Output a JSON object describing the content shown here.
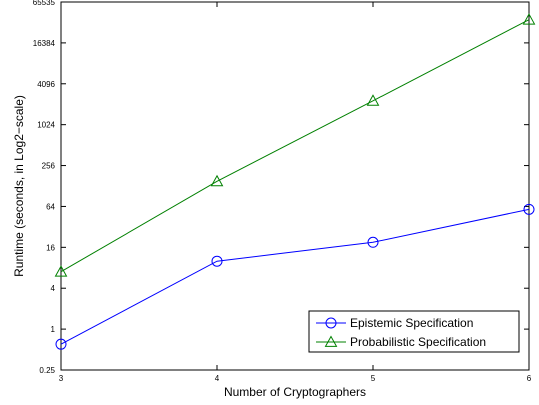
{
  "chart_data": {
    "type": "line",
    "title": "",
    "xlabel": "Number of Cryptographers",
    "ylabel": "Runtime (seconds, in Log2−scale)",
    "x": [
      3,
      4,
      5,
      6
    ],
    "xlim": [
      3,
      6
    ],
    "x_ticks": [
      "3",
      "4",
      "5",
      "6"
    ],
    "yscale": "log2",
    "ylim": [
      0.25,
      65535
    ],
    "y_ticks": [
      {
        "value": 0.25,
        "label": "0.25"
      },
      {
        "value": 1,
        "label": "1"
      },
      {
        "value": 4,
        "label": "4"
      },
      {
        "value": 16,
        "label": "16"
      },
      {
        "value": 64,
        "label": "64"
      },
      {
        "value": 256,
        "label": "256"
      },
      {
        "value": 1024,
        "label": "1024"
      },
      {
        "value": 4096,
        "label": "4096"
      },
      {
        "value": 16384,
        "label": "16384"
      },
      {
        "value": 65535,
        "label": "65535"
      }
    ],
    "grid": false,
    "legend_position": "bottom-right",
    "series": [
      {
        "name": "Epistemic Specification",
        "values": [
          0.6,
          10,
          19,
          58
        ],
        "color": "#0000ff",
        "marker": "circle"
      },
      {
        "name": "Probabilistic Specification",
        "values": [
          7,
          150,
          2300,
          36000
        ],
        "color": "#008000",
        "marker": "triangle"
      }
    ]
  }
}
